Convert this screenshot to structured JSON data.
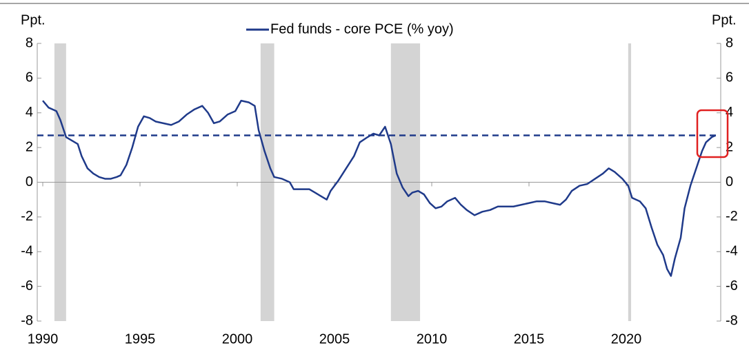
{
  "chart_data": {
    "type": "line",
    "legend": "Fed funds - core PCE (% yoy)",
    "y_label": "Ppt.",
    "y2_label": "Ppt.",
    "xlim": [
      1990,
      2025
    ],
    "xticks": [
      1990,
      1995,
      2000,
      2005,
      2010,
      2015,
      2020
    ],
    "ylim": [
      -8,
      8
    ],
    "yticks": [
      -8,
      -6,
      -4,
      -2,
      0,
      2,
      4,
      6,
      8
    ],
    "y2lim": [
      -8,
      8
    ],
    "y2ticks": [
      -8,
      -6,
      -4,
      -2,
      0,
      2,
      4,
      6,
      8
    ],
    "shaded_periods": [
      [
        1990.6,
        1991.2
      ],
      [
        2001.2,
        2001.9
      ],
      [
        2007.9,
        2009.4
      ],
      [
        2020.1,
        2020.25
      ]
    ],
    "reference_line": 2.7,
    "series": [
      {
        "name": "Fed funds - core PCE (% yoy)",
        "color": "#1f3a8a",
        "x": [
          1990.0,
          1990.3,
          1990.7,
          1990.9,
          1991.2,
          1991.5,
          1991.8,
          1992.0,
          1992.3,
          1992.6,
          1992.9,
          1993.2,
          1993.5,
          1993.8,
          1994.0,
          1994.3,
          1994.6,
          1994.9,
          1995.2,
          1995.5,
          1995.8,
          1996.2,
          1996.6,
          1997.0,
          1997.4,
          1997.8,
          1998.2,
          1998.5,
          1998.8,
          1999.1,
          1999.5,
          1999.9,
          2000.2,
          2000.6,
          2000.9,
          2001.1,
          2001.4,
          2001.7,
          2001.9,
          2002.3,
          2002.7,
          2002.9,
          2003.3,
          2003.7,
          2004.0,
          2004.3,
          2004.6,
          2004.8,
          2005.2,
          2005.6,
          2006.0,
          2006.3,
          2006.7,
          2007.0,
          2007.3,
          2007.6,
          2007.9,
          2008.2,
          2008.5,
          2008.8,
          2009.0,
          2009.3,
          2009.6,
          2009.9,
          2010.2,
          2010.5,
          2010.8,
          2011.2,
          2011.5,
          2011.8,
          2012.2,
          2012.6,
          2013.0,
          2013.4,
          2013.8,
          2014.2,
          2014.6,
          2015.0,
          2015.4,
          2015.8,
          2016.2,
          2016.6,
          2016.9,
          2017.2,
          2017.6,
          2018.0,
          2018.4,
          2018.8,
          2019.1,
          2019.4,
          2019.8,
          2020.1,
          2020.3,
          2020.7,
          2021.0,
          2021.3,
          2021.6,
          2021.9,
          2022.1,
          2022.3,
          2022.5,
          2022.8,
          2023.0,
          2023.3,
          2023.6,
          2023.9,
          2024.1,
          2024.4,
          2024.6
        ],
        "values": [
          4.7,
          4.3,
          4.1,
          3.6,
          2.6,
          2.4,
          2.2,
          1.5,
          0.8,
          0.5,
          0.3,
          0.2,
          0.2,
          0.3,
          0.4,
          1.0,
          2.0,
          3.2,
          3.8,
          3.7,
          3.5,
          3.4,
          3.3,
          3.5,
          3.9,
          4.2,
          4.4,
          4.0,
          3.4,
          3.5,
          3.9,
          4.1,
          4.7,
          4.6,
          4.4,
          3.0,
          1.8,
          0.8,
          0.3,
          0.2,
          0.0,
          -0.4,
          -0.4,
          -0.4,
          -0.6,
          -0.8,
          -1.0,
          -0.5,
          0.1,
          0.8,
          1.5,
          2.3,
          2.6,
          2.8,
          2.7,
          3.2,
          2.2,
          0.5,
          -0.3,
          -0.8,
          -0.6,
          -0.5,
          -0.7,
          -1.2,
          -1.5,
          -1.4,
          -1.1,
          -0.9,
          -1.3,
          -1.6,
          -1.9,
          -1.7,
          -1.6,
          -1.4,
          -1.4,
          -1.4,
          -1.3,
          -1.2,
          -1.1,
          -1.1,
          -1.2,
          -1.3,
          -1.0,
          -0.5,
          -0.2,
          -0.1,
          0.2,
          0.5,
          0.8,
          0.6,
          0.2,
          -0.2,
          -0.9,
          -1.1,
          -1.5,
          -2.6,
          -3.6,
          -4.2,
          -5.0,
          -5.4,
          -4.4,
          -3.2,
          -1.5,
          -0.2,
          0.8,
          1.8,
          2.3,
          2.6,
          2.7
        ]
      }
    ]
  }
}
